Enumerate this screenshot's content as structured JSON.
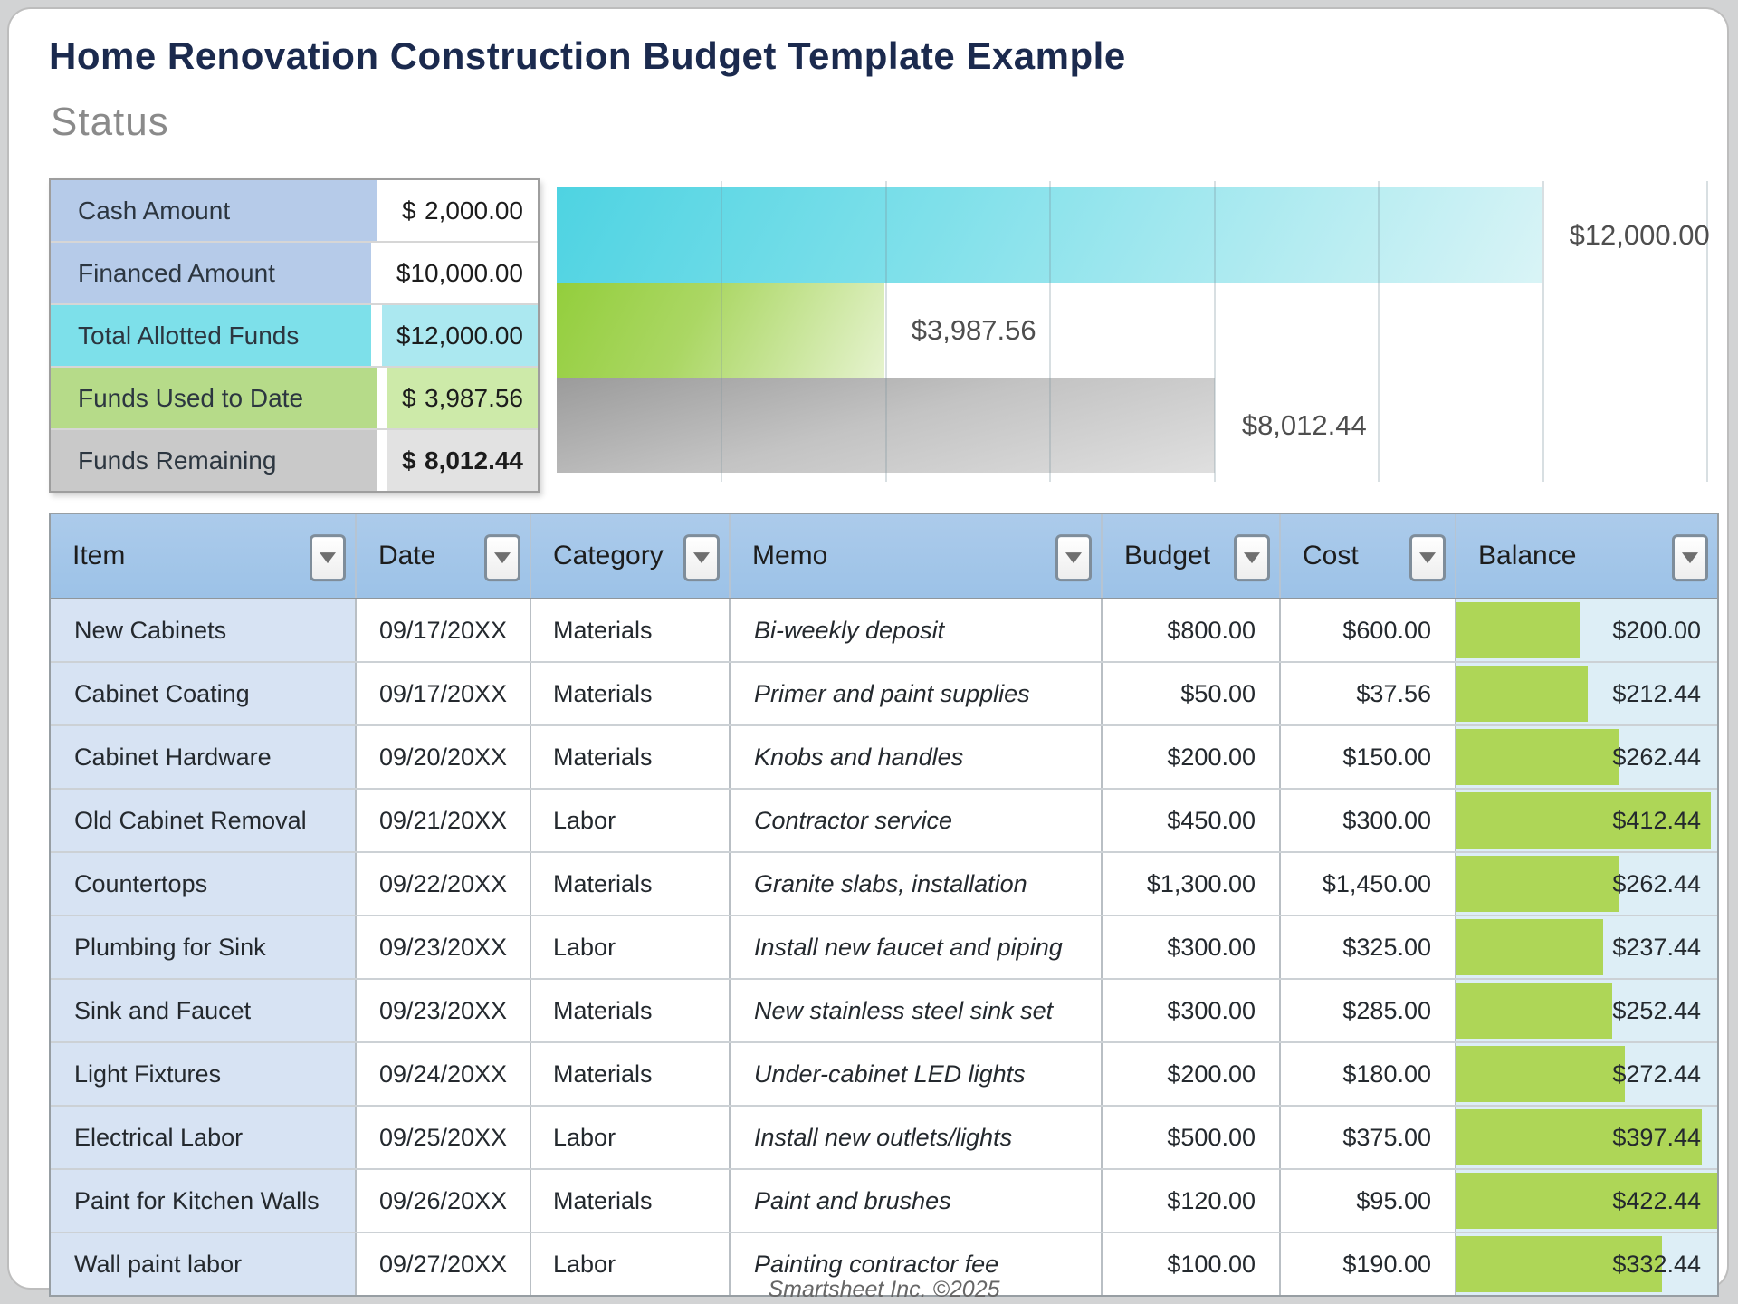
{
  "page": {
    "title": "Home Renovation Construction Budget Template Example",
    "footer": "Smartsheet Inc. ©2025"
  },
  "status": {
    "heading": "Status",
    "rows": [
      {
        "label": "Cash Amount",
        "currency": "$",
        "value": "2,000.00",
        "style": "blue",
        "bold": false
      },
      {
        "label": "Financed Amount",
        "currency": "$",
        "value": "10,000.00",
        "style": "blue",
        "bold": false
      },
      {
        "label": "Total Allotted Funds",
        "currency": "$",
        "value": "12,000.00",
        "style": "cyan",
        "bold": false
      },
      {
        "label": "Funds Used to Date",
        "currency": "$",
        "value": "3,987.56",
        "style": "green",
        "bold": false
      },
      {
        "label": "Funds Remaining",
        "currency": "$",
        "value": "8,012.44",
        "style": "gray",
        "bold": true
      }
    ]
  },
  "chart_data": {
    "type": "bar",
    "orientation": "horizontal",
    "title": "",
    "categories": [
      "Total Allotted Funds",
      "Funds Used to Date",
      "Funds Remaining"
    ],
    "values": [
      12000,
      3987.56,
      8012.44
    ],
    "value_labels": [
      "$12,000.00",
      "$3,987.56",
      "$8,012.44"
    ],
    "xlim": [
      0,
      14000
    ],
    "gridline_interval": 2000,
    "grid": true,
    "legend": false,
    "bar_colors": [
      "cyan-gradient",
      "green-gradient",
      "gray-gradient"
    ]
  },
  "table": {
    "filter_icon_name": "filter-dropdown-icon",
    "columns": [
      {
        "label": "Item"
      },
      {
        "label": "Date"
      },
      {
        "label": "Category"
      },
      {
        "label": "Memo"
      },
      {
        "label": "Budget"
      },
      {
        "label": "Cost"
      },
      {
        "label": "Balance"
      }
    ],
    "balance_bar_max": 422.44,
    "rows": [
      {
        "item": "New Cabinets",
        "date": "09/17/20XX",
        "category": "Materials",
        "memo": "Bi-weekly deposit",
        "budget": "$800.00",
        "cost": "$600.00",
        "balance": "$200.00",
        "balance_value": 200.0
      },
      {
        "item": "Cabinet Coating",
        "date": "09/17/20XX",
        "category": "Materials",
        "memo": "Primer and paint supplies",
        "budget": "$50.00",
        "cost": "$37.56",
        "balance": "$212.44",
        "balance_value": 212.44
      },
      {
        "item": "Cabinet Hardware",
        "date": "09/20/20XX",
        "category": "Materials",
        "memo": "Knobs and handles",
        "budget": "$200.00",
        "cost": "$150.00",
        "balance": "$262.44",
        "balance_value": 262.44
      },
      {
        "item": "Old Cabinet Removal",
        "date": "09/21/20XX",
        "category": "Labor",
        "memo": "Contractor service",
        "budget": "$450.00",
        "cost": "$300.00",
        "balance": "$412.44",
        "balance_value": 412.44
      },
      {
        "item": "Countertops",
        "date": "09/22/20XX",
        "category": "Materials",
        "memo": "Granite slabs, installation",
        "budget": "$1,300.00",
        "cost": "$1,450.00",
        "balance": "$262.44",
        "balance_value": 262.44
      },
      {
        "item": "Plumbing for Sink",
        "date": "09/23/20XX",
        "category": "Labor",
        "memo": "Install new faucet and piping",
        "budget": "$300.00",
        "cost": "$325.00",
        "balance": "$237.44",
        "balance_value": 237.44
      },
      {
        "item": "Sink and Faucet",
        "date": "09/23/20XX",
        "category": "Materials",
        "memo": "New stainless steel sink set",
        "budget": "$300.00",
        "cost": "$285.00",
        "balance": "$252.44",
        "balance_value": 252.44
      },
      {
        "item": "Light Fixtures",
        "date": "09/24/20XX",
        "category": "Materials",
        "memo": "Under-cabinet LED lights",
        "budget": "$200.00",
        "cost": "$180.00",
        "balance": "$272.44",
        "balance_value": 272.44
      },
      {
        "item": "Electrical Labor",
        "date": "09/25/20XX",
        "category": "Labor",
        "memo": "Install new outlets/lights",
        "budget": "$500.00",
        "cost": "$375.00",
        "balance": "$397.44",
        "balance_value": 397.44
      },
      {
        "item": "Paint for Kitchen Walls",
        "date": "09/26/20XX",
        "category": "Materials",
        "memo": "Paint and brushes",
        "budget": "$120.00",
        "cost": "$95.00",
        "balance": "$422.44",
        "balance_value": 422.44
      },
      {
        "item": "Wall paint labor",
        "date": "09/27/20XX",
        "category": "Labor",
        "memo": "Painting contractor fee",
        "budget": "$100.00",
        "cost": "$190.00",
        "balance": "$332.44",
        "balance_value": 332.44
      }
    ]
  },
  "colors": {
    "title_text": "#1b2a4e",
    "table_header_blue": "#9cc2e7",
    "item_column_blue": "#d7e3f3",
    "balance_cell_blue": "#ddeef6",
    "balance_bar_green": "#aed657",
    "status_cyan": "#7de0ea",
    "status_green": "#b6db89",
    "status_blue": "#b6cbe9",
    "status_gray": "#c9c9c9",
    "chart_cyan": "#4ed3e2",
    "chart_green": "#93ce3c",
    "chart_gray": "#9b9b9b"
  }
}
